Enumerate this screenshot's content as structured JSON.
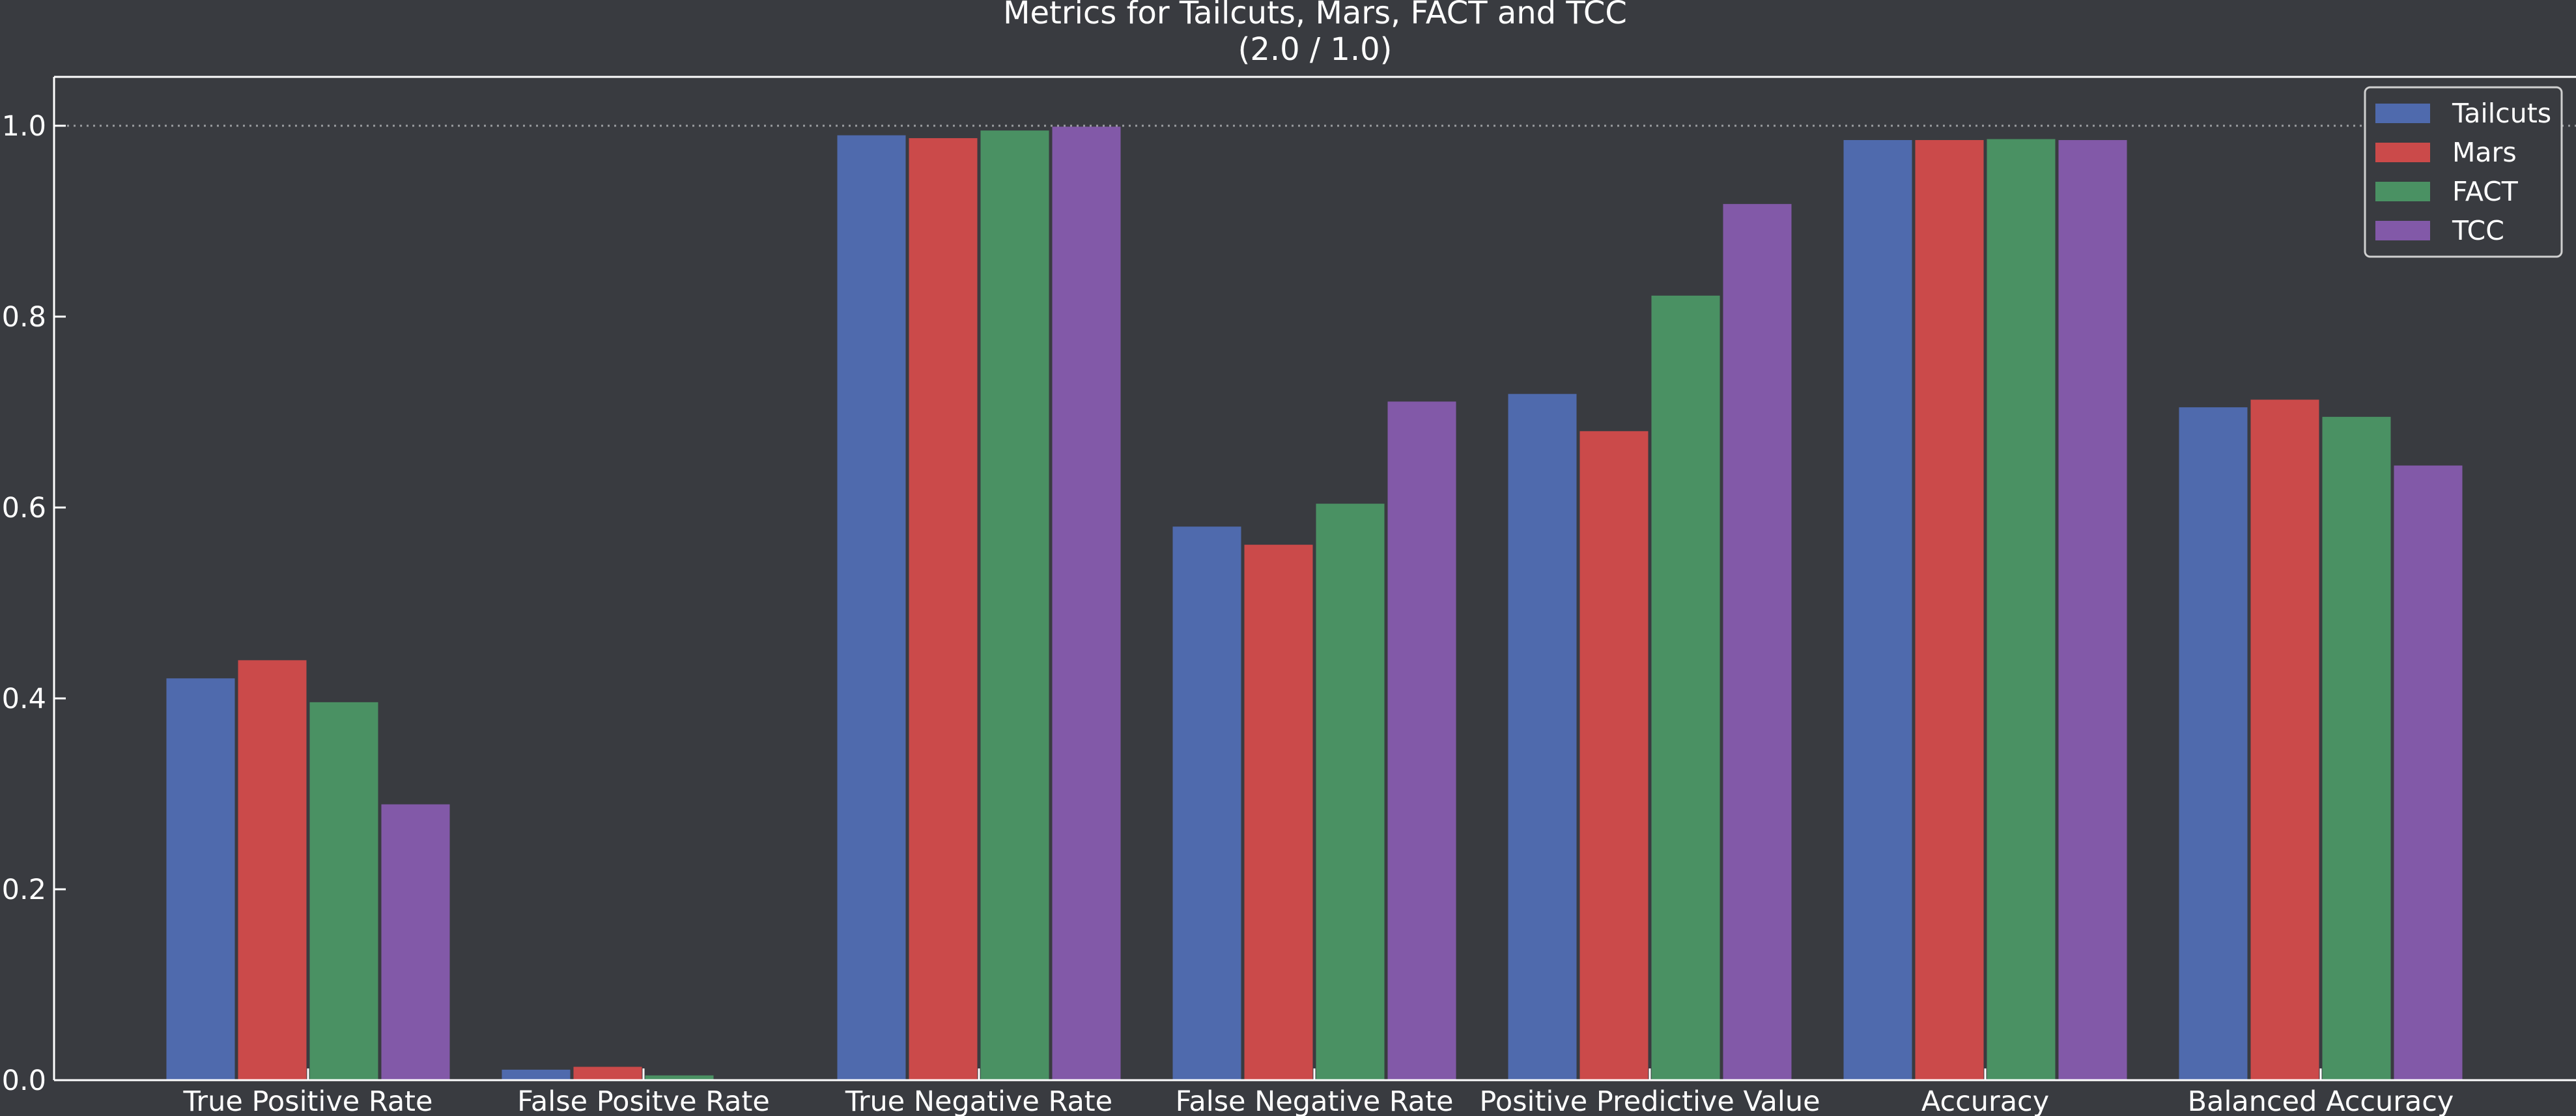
{
  "chart_data": {
    "type": "bar",
    "title": "Metrics for Tailcuts, Mars, FACT and TCC",
    "subtitle": "(2.0 / 1.0)",
    "categories": [
      "True Positive Rate",
      "False Positve Rate",
      "True Negative Rate",
      "False Negative Rate",
      "Positive Predictive Value",
      "Accuracy",
      "Balanced Accuracy"
    ],
    "series": [
      {
        "name": "Tailcuts",
        "color": "#4f6aad",
        "values": [
          0.421,
          0.011,
          0.99,
          0.58,
          0.719,
          0.985,
          0.705
        ]
      },
      {
        "name": "Mars",
        "color": "#cb4a4a",
        "values": [
          0.44,
          0.014,
          0.987,
          0.561,
          0.68,
          0.985,
          0.713
        ]
      },
      {
        "name": "FACT",
        "color": "#4a9163",
        "values": [
          0.396,
          0.005,
          0.995,
          0.604,
          0.822,
          0.986,
          0.695
        ]
      },
      {
        "name": "TCC",
        "color": "#8259a8",
        "values": [
          0.289,
          0.001,
          0.999,
          0.711,
          0.918,
          0.985,
          0.644
        ]
      }
    ],
    "yticks": [
      "0.0",
      "0.2",
      "0.4",
      "0.6",
      "0.8",
      "1.0"
    ],
    "ylim": [
      0,
      1.05
    ],
    "reference_line": 1.0,
    "legend_position": "top-right",
    "grid": false
  }
}
